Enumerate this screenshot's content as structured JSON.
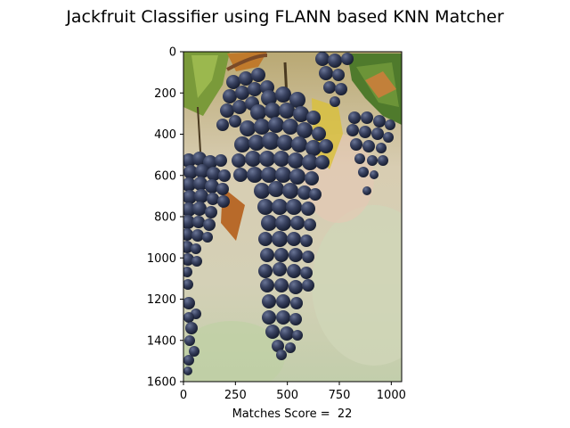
{
  "chart_data": {
    "type": "image",
    "title": "Jackfruit Classifier using FLANN based KNN Matcher",
    "xlabel": "Matches Score =  22",
    "ylabel": "",
    "xlim": [
      0,
      1050
    ],
    "ylim": [
      1600,
      0
    ],
    "xticks": [
      0,
      250,
      500,
      750,
      1000
    ],
    "yticks": [
      0,
      200,
      400,
      600,
      800,
      1000,
      1200,
      1400,
      1600
    ],
    "image_subject": "bunches of dark blue-purple grapes hanging from a vine with green and yellow leaves, blurred green-beige background"
  }
}
